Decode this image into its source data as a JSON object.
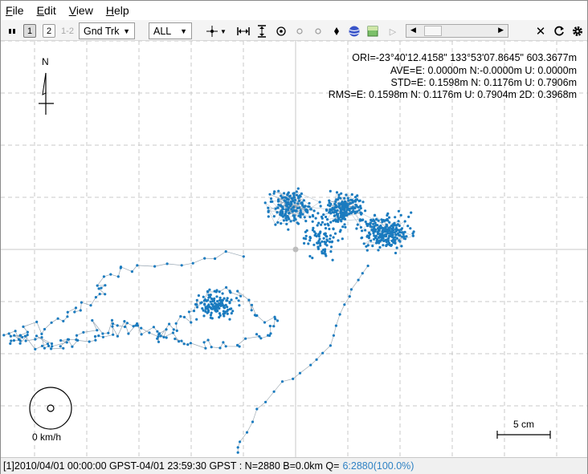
{
  "menu": {
    "file": {
      "u": "F",
      "rest": "ile"
    },
    "edit": {
      "u": "E",
      "rest": "dit"
    },
    "view": {
      "u": "V",
      "rest": "iew"
    },
    "help": {
      "u": "H",
      "rest": "elp"
    }
  },
  "toolbar": {
    "btn1": "1",
    "btn2": "2",
    "btn12": "1-2",
    "plot_type": "Gnd Trk",
    "quality_filter": "ALL"
  },
  "plot": {
    "compass_label": "N",
    "ori": "ORI=-23°40'12.4158\"  133°53'07.8645\" 603.3677m",
    "ave": "AVE=E: 0.0000m N:-0.0000m U: 0.0000m",
    "std": "STD=E: 0.1598m N: 0.1176m U: 0.7906m",
    "rms": "RMS=E: 0.1598m N: 0.1176m U: 0.7904m 2D: 0.3968m",
    "speed": "0 km/h",
    "scale": "5 cm"
  },
  "colors": {
    "track": "#1a7bbf",
    "grid": "#c8c8c8",
    "origin": "#bdbdbd",
    "quality_text": "#2f82c4"
  },
  "status": {
    "main": "[1]2010/04/01 00:00:00 GPST-04/01 23:59:30 GPST : N=2880 B=0.0km Q=",
    "quality": "6:2880(100.0%)"
  }
}
